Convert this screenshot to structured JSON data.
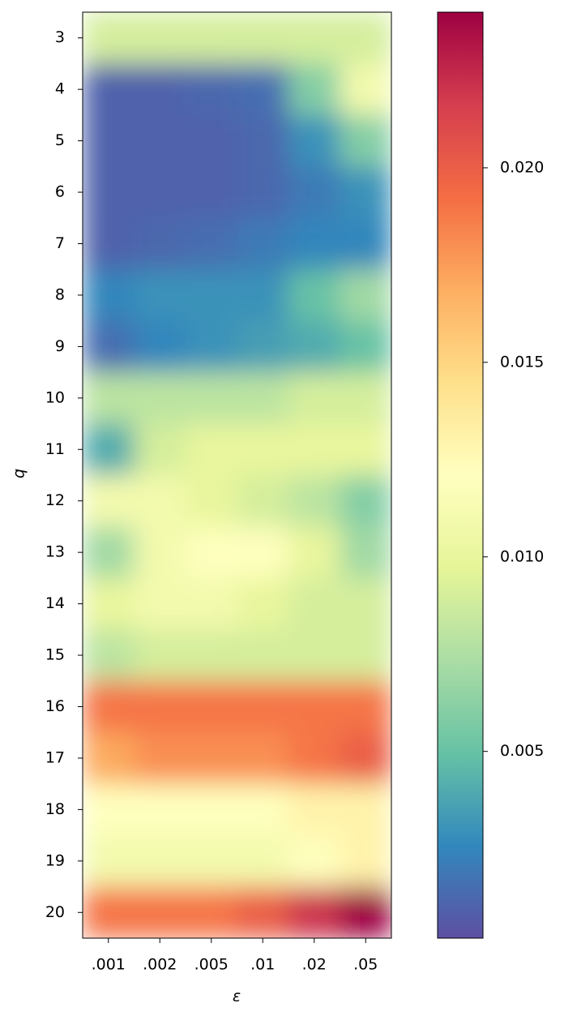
{
  "chart_data": {
    "type": "heatmap",
    "x_label": "ε",
    "y_label": "q",
    "x": [
      ".001",
      ".002",
      ".005",
      ".01",
      ".02",
      ".05"
    ],
    "y": [
      3,
      4,
      5,
      6,
      7,
      8,
      9,
      10,
      11,
      12,
      13,
      14,
      15,
      16,
      17,
      18,
      19,
      20
    ],
    "values": [
      [
        0.009,
        0.009,
        0.009,
        0.009,
        0.009,
        0.009
      ],
      [
        0.001,
        0.001,
        0.0012,
        0.0015,
        0.006,
        0.011
      ],
      [
        0.001,
        0.001,
        0.001,
        0.0012,
        0.003,
        0.006
      ],
      [
        0.001,
        0.001,
        0.001,
        0.0012,
        0.002,
        0.003
      ],
      [
        0.001,
        0.0012,
        0.0015,
        0.002,
        0.0025,
        0.0025
      ],
      [
        0.0025,
        0.003,
        0.003,
        0.003,
        0.005,
        0.007
      ],
      [
        0.0015,
        0.0025,
        0.003,
        0.0035,
        0.004,
        0.005
      ],
      [
        0.008,
        0.008,
        0.008,
        0.008,
        0.009,
        0.009
      ],
      [
        0.004,
        0.009,
        0.01,
        0.01,
        0.01,
        0.01
      ],
      [
        0.011,
        0.011,
        0.01,
        0.009,
        0.008,
        0.006
      ],
      [
        0.007,
        0.011,
        0.012,
        0.012,
        0.01,
        0.007
      ],
      [
        0.01,
        0.011,
        0.011,
        0.01,
        0.009,
        0.009
      ],
      [
        0.008,
        0.009,
        0.009,
        0.009,
        0.009,
        0.009
      ],
      [
        0.019,
        0.019,
        0.019,
        0.019,
        0.019,
        0.019
      ],
      [
        0.017,
        0.018,
        0.018,
        0.018,
        0.019,
        0.02
      ],
      [
        0.012,
        0.012,
        0.012,
        0.012,
        0.013,
        0.013
      ],
      [
        0.011,
        0.011,
        0.011,
        0.011,
        0.012,
        0.013
      ],
      [
        0.019,
        0.019,
        0.019,
        0.02,
        0.022,
        0.024
      ]
    ],
    "clim": [
      0.0002,
      0.024
    ],
    "cticks": [
      0.005,
      {
        "value": 0.01,
        "label": "0.010"
      },
      0.015,
      {
        "value": 0.02,
        "label": "0.020"
      }
    ],
    "colormap": [
      "#5e4fa2",
      "#3288bd",
      "#66c2a5",
      "#abdda4",
      "#e6f598",
      "#ffffbf",
      "#fee08b",
      "#fdae61",
      "#f46d43",
      "#d53e4f",
      "#9e0142"
    ]
  }
}
